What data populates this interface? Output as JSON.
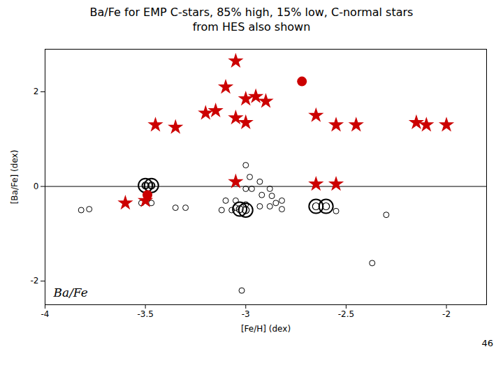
{
  "chart_data": {
    "type": "scatter",
    "title": "Ba/Fe for EMP C-stars, 85% high, 15% low, C-normal stars\nfrom HES also shown",
    "xlabel": "[Fe/H] (dex)",
    "ylabel": "[Ba/Fe] (dex)",
    "annotation": "Ba/Fe",
    "caption": "46",
    "xlim": [
      -4,
      -1.8
    ],
    "ylim": [
      -2.5,
      2.9
    ],
    "xticks": [
      -4,
      -3.5,
      -3,
      -2.5,
      -2
    ],
    "yticks": [
      -2,
      0,
      2
    ],
    "hline": 0,
    "series": [
      {
        "marker": "circle_open",
        "color": "#000000",
        "x": [
          -3.82,
          -3.78,
          -3.52,
          -3.47,
          -3.5,
          -3.47,
          -3.35,
          -3.3,
          -3.0,
          -2.98,
          -3.0,
          -2.97,
          -2.93,
          -2.88,
          -2.92,
          -2.87,
          -2.82,
          -2.85,
          -2.93,
          -2.88,
          -2.82,
          -3.1,
          -3.05,
          -3.0,
          -3.05,
          -3.12,
          -3.07,
          -2.55,
          -3.02,
          -2.37,
          -2.3
        ],
        "y": [
          -0.5,
          -0.48,
          -0.35,
          -0.35,
          0.02,
          0.02,
          -0.45,
          -0.45,
          0.45,
          0.2,
          -0.05,
          -0.05,
          0.1,
          -0.05,
          -0.18,
          -0.2,
          -0.3,
          -0.35,
          -0.42,
          -0.42,
          -0.48,
          -0.3,
          -0.3,
          -0.38,
          -0.45,
          -0.5,
          -0.5,
          -0.52,
          -2.2,
          -1.62,
          -0.6
        ]
      },
      {
        "marker": "double_circle",
        "color": "#000000",
        "x": [
          -3.5,
          -3.47,
          -2.65,
          -2.6,
          -3.03,
          -3.0
        ],
        "y": [
          0.02,
          0.02,
          -0.42,
          -0.42,
          -0.48,
          -0.5
        ]
      },
      {
        "marker": "circle",
        "color": "#cc0000",
        "x": [
          -3.49,
          -2.72
        ],
        "y": [
          -0.18,
          2.22
        ]
      },
      {
        "marker": "star",
        "color": "#cc0000",
        "x": [
          -3.05,
          -3.1,
          -2.95,
          -3.0,
          -2.9,
          -3.15,
          -3.2,
          -3.05,
          -3.0,
          -3.45,
          -3.35,
          -2.65,
          -2.55,
          -2.45,
          -2.15,
          -2.1,
          -2.0,
          -3.05,
          -2.55,
          -2.65,
          -3.6,
          -3.5
        ],
        "y": [
          2.65,
          2.1,
          1.9,
          1.85,
          1.8,
          1.6,
          1.55,
          1.45,
          1.35,
          1.3,
          1.25,
          1.5,
          1.3,
          1.3,
          1.35,
          1.3,
          1.3,
          0.1,
          0.05,
          0.05,
          -0.35,
          -0.3
        ]
      }
    ]
  }
}
